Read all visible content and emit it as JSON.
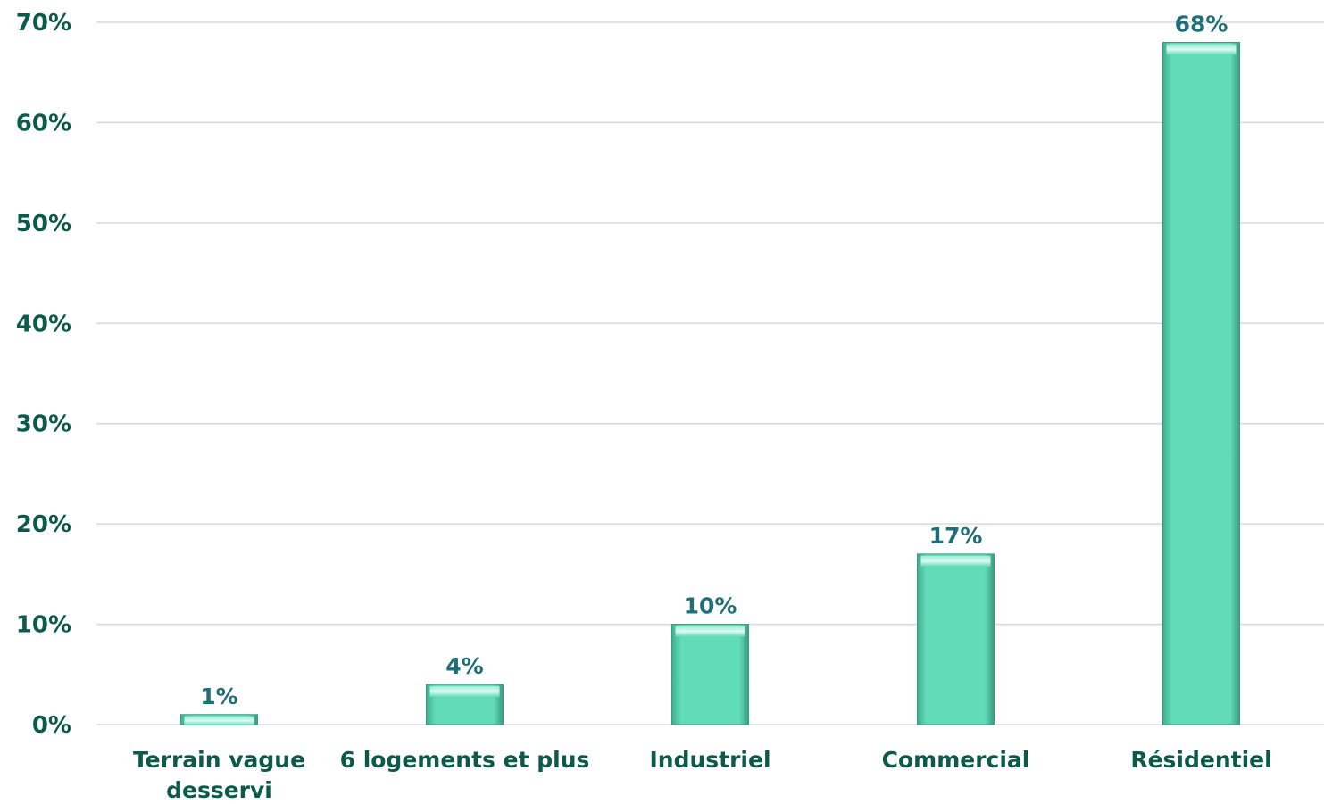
{
  "chart_data": {
    "type": "bar",
    "categories": [
      "Terrain vague desserví",
      "6 logements et plus",
      "Industriel",
      "Commercial",
      "Résidentiel"
    ],
    "category_lines": [
      [
        "Terrain vague",
        "desservi"
      ],
      [
        "6 logements et plus"
      ],
      [
        "Industriel"
      ],
      [
        "Commercial"
      ],
      [
        "Résidentiel"
      ]
    ],
    "values": [
      1,
      4,
      10,
      17,
      68
    ],
    "data_labels": [
      "1%",
      "4%",
      "10%",
      "17%",
      "68%"
    ],
    "y_ticks": [
      "0%",
      "10%",
      "20%",
      "30%",
      "40%",
      "50%",
      "60%",
      "70%"
    ],
    "ylim": [
      0,
      70
    ],
    "grid": true,
    "title": "",
    "xlabel": "",
    "ylabel": "",
    "colors": {
      "bar": "#62dbb8",
      "bar_edge": "#3a9c80",
      "text": "#0b5a4a",
      "label": "#1f6f78",
      "grid": "#d9d9d9"
    }
  }
}
